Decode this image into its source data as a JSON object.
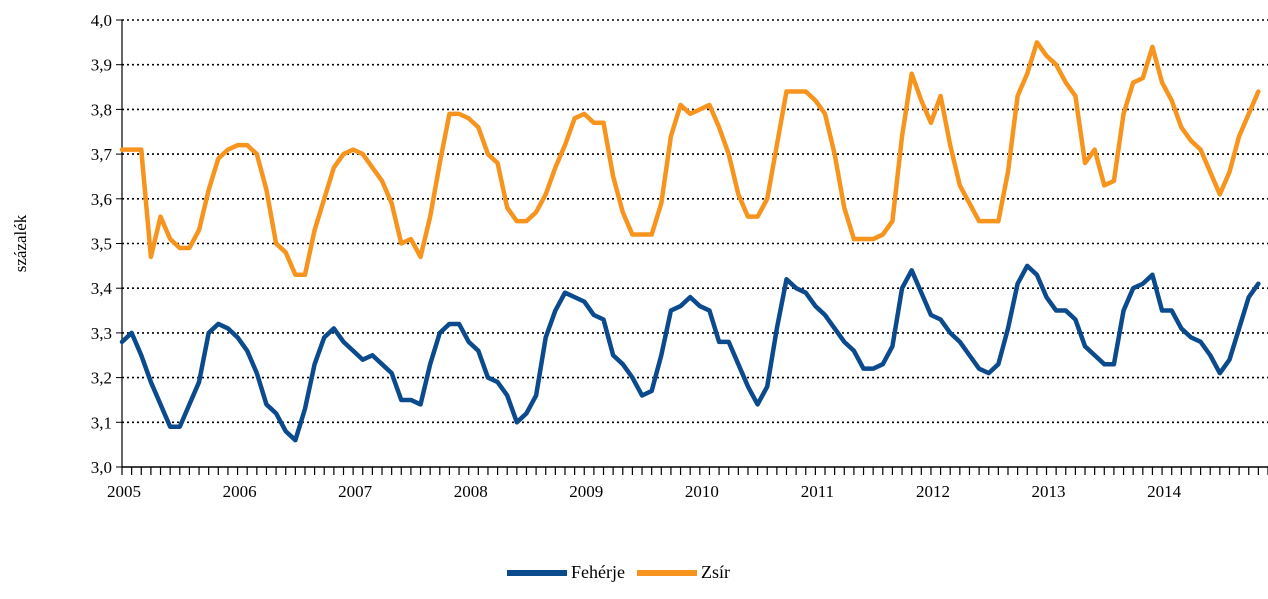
{
  "chart_data": {
    "type": "line",
    "title": "",
    "xlabel": "",
    "ylabel": "százalék",
    "ylim": [
      3.0,
      4.0
    ],
    "yticks": [
      "3,0",
      "3,1",
      "3,2",
      "3,3",
      "3,4",
      "3,5",
      "3,6",
      "3,7",
      "3,8",
      "3,9",
      "4,0"
    ],
    "x_start": "2005-01",
    "x_tick_labels": [
      "2005",
      "2006",
      "2007",
      "2008",
      "2009",
      "2010",
      "2011",
      "2012",
      "2013",
      "2014"
    ],
    "grid": "horizontal dotted",
    "legend_position": "bottom-center",
    "series": [
      {
        "name": "Fehérje",
        "color": "#0b4a8c",
        "values": [
          3.28,
          3.3,
          3.25,
          3.19,
          3.14,
          3.09,
          3.09,
          3.14,
          3.19,
          3.3,
          3.32,
          3.31,
          3.29,
          3.26,
          3.21,
          3.14,
          3.12,
          3.08,
          3.06,
          3.13,
          3.23,
          3.29,
          3.31,
          3.28,
          3.26,
          3.24,
          3.25,
          3.23,
          3.21,
          3.15,
          3.15,
          3.14,
          3.23,
          3.3,
          3.32,
          3.32,
          3.28,
          3.26,
          3.2,
          3.19,
          3.16,
          3.1,
          3.12,
          3.16,
          3.29,
          3.35,
          3.39,
          3.38,
          3.37,
          3.34,
          3.33,
          3.25,
          3.23,
          3.2,
          3.16,
          3.17,
          3.25,
          3.35,
          3.36,
          3.38,
          3.36,
          3.35,
          3.28,
          3.28,
          3.23,
          3.18,
          3.14,
          3.18,
          3.31,
          3.42,
          3.4,
          3.39,
          3.36,
          3.34,
          3.31,
          3.28,
          3.26,
          3.22,
          3.22,
          3.23,
          3.27,
          3.4,
          3.44,
          3.39,
          3.34,
          3.33,
          3.3,
          3.28,
          3.25,
          3.22,
          3.21,
          3.23,
          3.31,
          3.41,
          3.45,
          3.43,
          3.38,
          3.35,
          3.35,
          3.33,
          3.27,
          3.25,
          3.23,
          3.23,
          3.35,
          3.4,
          3.41,
          3.43,
          3.35,
          3.35,
          3.31,
          3.29,
          3.28,
          3.25,
          3.21,
          3.24,
          3.31,
          3.38,
          3.41
        ]
      },
      {
        "name": "Zsír",
        "color": "#f7941d",
        "values": [
          3.71,
          3.71,
          3.71,
          3.47,
          3.56,
          3.51,
          3.49,
          3.49,
          3.53,
          3.62,
          3.69,
          3.71,
          3.72,
          3.72,
          3.7,
          3.62,
          3.5,
          3.48,
          3.43,
          3.43,
          3.53,
          3.6,
          3.67,
          3.7,
          3.71,
          3.7,
          3.67,
          3.64,
          3.59,
          3.5,
          3.51,
          3.47,
          3.56,
          3.68,
          3.79,
          3.79,
          3.78,
          3.76,
          3.7,
          3.68,
          3.58,
          3.55,
          3.55,
          3.57,
          3.61,
          3.67,
          3.72,
          3.78,
          3.79,
          3.77,
          3.77,
          3.65,
          3.57,
          3.52,
          3.52,
          3.52,
          3.59,
          3.74,
          3.81,
          3.79,
          3.8,
          3.81,
          3.76,
          3.7,
          3.61,
          3.56,
          3.56,
          3.6,
          3.72,
          3.84,
          3.84,
          3.84,
          3.82,
          3.79,
          3.7,
          3.58,
          3.51,
          3.51,
          3.51,
          3.52,
          3.55,
          3.74,
          3.88,
          3.82,
          3.77,
          3.83,
          3.72,
          3.63,
          3.59,
          3.55,
          3.55,
          3.55,
          3.66,
          3.83,
          3.88,
          3.95,
          3.92,
          3.9,
          3.86,
          3.83,
          3.68,
          3.71,
          3.63,
          3.64,
          3.79,
          3.86,
          3.87,
          3.94,
          3.86,
          3.82,
          3.76,
          3.73,
          3.71,
          3.66,
          3.61,
          3.66,
          3.74,
          3.79,
          3.84
        ]
      }
    ]
  }
}
